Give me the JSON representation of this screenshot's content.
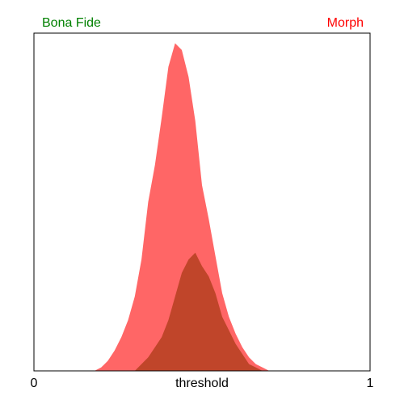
{
  "legend": {
    "left_label": "Bona Fide",
    "left_color": "#008000",
    "right_label": "Morph",
    "right_color": "#ff0000"
  },
  "chart_data": {
    "type": "area",
    "xlabel": "threshold",
    "ylabel": "",
    "xlim": [
      0,
      1
    ],
    "ylim": [
      0,
      1
    ],
    "x_ticks": [
      "0",
      "1"
    ],
    "legend_placement": "top",
    "grid": false,
    "series": [
      {
        "name": "Morph",
        "color": "#ff6666",
        "x": [
          0.18,
          0.2,
          0.22,
          0.24,
          0.26,
          0.28,
          0.3,
          0.32,
          0.34,
          0.36,
          0.38,
          0.4,
          0.42,
          0.44,
          0.46,
          0.48,
          0.5,
          0.52,
          0.54,
          0.56,
          0.58,
          0.6,
          0.62,
          0.64,
          0.66,
          0.68,
          0.7,
          0.72,
          0.74
        ],
        "values": [
          0.0,
          0.01,
          0.03,
          0.06,
          0.1,
          0.15,
          0.22,
          0.33,
          0.5,
          0.61,
          0.75,
          0.9,
          0.97,
          0.95,
          0.87,
          0.74,
          0.55,
          0.45,
          0.34,
          0.23,
          0.16,
          0.11,
          0.07,
          0.04,
          0.02,
          0.01,
          0.0,
          0.0,
          0.0
        ]
      },
      {
        "name": "Bona Fide",
        "color": "#c0452a",
        "x": [
          0.3,
          0.32,
          0.34,
          0.36,
          0.38,
          0.4,
          0.42,
          0.44,
          0.46,
          0.48,
          0.5,
          0.52,
          0.54,
          0.56,
          0.58,
          0.6,
          0.62,
          0.64,
          0.66,
          0.68,
          0.7
        ],
        "values": [
          0.0,
          0.02,
          0.04,
          0.07,
          0.1,
          0.15,
          0.22,
          0.29,
          0.33,
          0.35,
          0.31,
          0.28,
          0.23,
          0.16,
          0.12,
          0.08,
          0.05,
          0.02,
          0.01,
          0.0,
          0.0
        ]
      }
    ]
  }
}
